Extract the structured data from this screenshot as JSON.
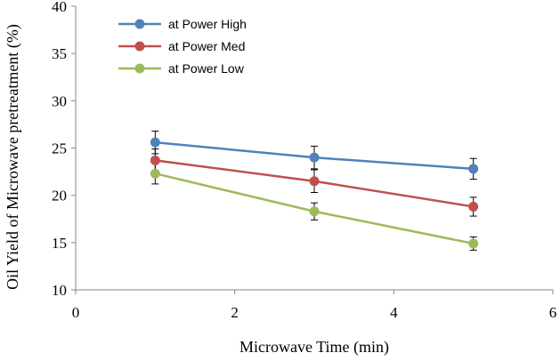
{
  "chart_data": {
    "type": "line",
    "title": "",
    "xlabel": "Microwave Time (min)",
    "ylabel": "Oil Yield of Microwave pretreatment (%)",
    "xlim": [
      0,
      6
    ],
    "ylim": [
      10,
      40
    ],
    "xticks": [
      0,
      2,
      4,
      6
    ],
    "yticks": [
      10,
      15,
      20,
      25,
      30,
      35,
      40
    ],
    "grid": false,
    "legend_position": "top-left",
    "x": [
      1,
      3,
      5
    ],
    "series": [
      {
        "name": "at Power High",
        "color": "#4F81BD",
        "values": [
          25.6,
          24.0,
          22.8
        ],
        "error": [
          1.2,
          1.2,
          1.1
        ]
      },
      {
        "name": "at Power Med",
        "color": "#C0504D",
        "values": [
          23.7,
          21.5,
          18.8
        ],
        "error": [
          1.2,
          1.2,
          1.0
        ]
      },
      {
        "name": "at Power Low",
        "color": "#9BBB59",
        "values": [
          22.3,
          18.3,
          14.9
        ],
        "error": [
          1.1,
          0.9,
          0.7
        ]
      }
    ]
  }
}
